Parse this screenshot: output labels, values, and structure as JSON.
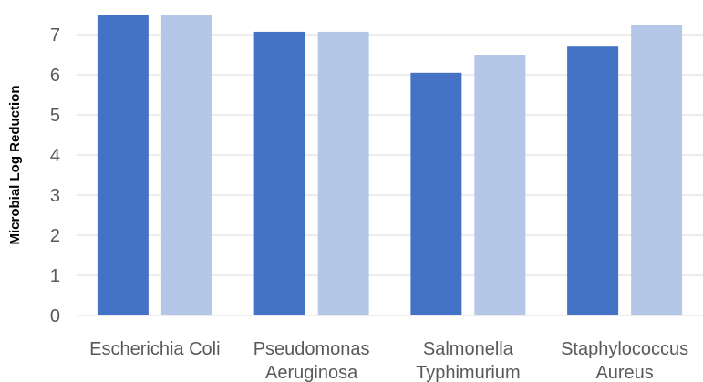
{
  "chart_data": {
    "type": "bar",
    "ylabel": "Microbial Log Reduction",
    "xlabel": "",
    "ylim": [
      0,
      7.5
    ],
    "yticks": [
      0,
      1,
      2,
      3,
      4,
      5,
      6,
      7
    ],
    "grid": true,
    "legend": "none",
    "categories": [
      [
        "Escherichia Coli"
      ],
      [
        "Pseudomonas",
        "Aeruginosa"
      ],
      [
        "Salmonella",
        "Typhimurium"
      ],
      [
        "Staphylococcus",
        "Aureus"
      ]
    ],
    "series": [
      {
        "color": "#4472c4",
        "values": [
          7.5,
          7.07,
          6.05,
          6.7
        ]
      },
      {
        "color": "#b4c7e7",
        "values": [
          7.5,
          7.07,
          6.5,
          7.25
        ]
      }
    ]
  }
}
